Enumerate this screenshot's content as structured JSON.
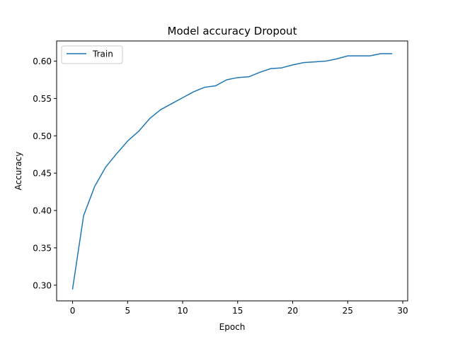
{
  "chart_data": {
    "type": "line",
    "title": "Model accuracy Dropout",
    "xlabel": "Epoch",
    "ylabel": "Accuracy",
    "xlim": [
      -1.45,
      30.45
    ],
    "ylim": [
      0.279,
      0.627
    ],
    "xticks": [
      0,
      5,
      10,
      15,
      20,
      25,
      30
    ],
    "yticks": [
      0.3,
      0.35,
      0.4,
      0.45,
      0.5,
      0.55,
      0.6
    ],
    "xtick_labels": [
      "0",
      "5",
      "10",
      "15",
      "20",
      "25",
      "30"
    ],
    "ytick_labels": [
      "0.30",
      "0.35",
      "0.40",
      "0.45",
      "0.50",
      "0.55",
      "0.60"
    ],
    "grid": false,
    "legend": {
      "placement": "upper-left",
      "entries": [
        "Train"
      ]
    },
    "series": [
      {
        "name": "Train",
        "color": "#1f77b4",
        "x": [
          0,
          1,
          2,
          3,
          4,
          5,
          6,
          7,
          8,
          9,
          10,
          11,
          12,
          13,
          14,
          15,
          16,
          17,
          18,
          19,
          20,
          21,
          22,
          23,
          24,
          25,
          26,
          27,
          28,
          29
        ],
        "values": [
          0.295,
          0.393,
          0.432,
          0.458,
          0.476,
          0.493,
          0.506,
          0.523,
          0.535,
          0.543,
          0.551,
          0.559,
          0.565,
          0.567,
          0.575,
          0.578,
          0.579,
          0.585,
          0.59,
          0.591,
          0.595,
          0.598,
          0.599,
          0.6,
          0.603,
          0.607,
          0.607,
          0.607,
          0.61,
          0.61
        ]
      }
    ]
  }
}
